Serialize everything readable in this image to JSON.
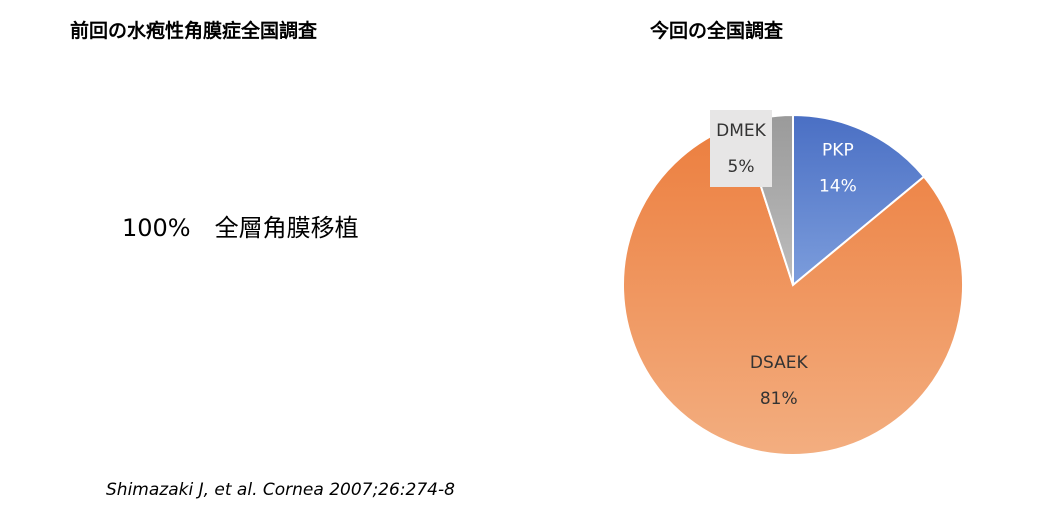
{
  "left": {
    "title": "前回の水疱性角膜症全国調査",
    "summary": "100%　全層角膜移植",
    "citation": "Shimazaki J, et al. Cornea 2007;26:274-8"
  },
  "chart_data": {
    "type": "pie",
    "title": "今回の全国調査",
    "start": "12 o'clock",
    "direction": "clockwise",
    "slices": [
      {
        "label": "PKP",
        "value": 14,
        "value_label": "14%",
        "color": "#5b7fcf",
        "text_color": "#ffffff"
      },
      {
        "label": "DSAEK",
        "value": 81,
        "value_label": "81%",
        "color": "#f19c66",
        "text_color": "#333333"
      },
      {
        "label": "DMEK",
        "value": 5,
        "value_label": "5%",
        "color": "#a6a6a6",
        "text_color": "#333333"
      }
    ],
    "legend": "none"
  }
}
